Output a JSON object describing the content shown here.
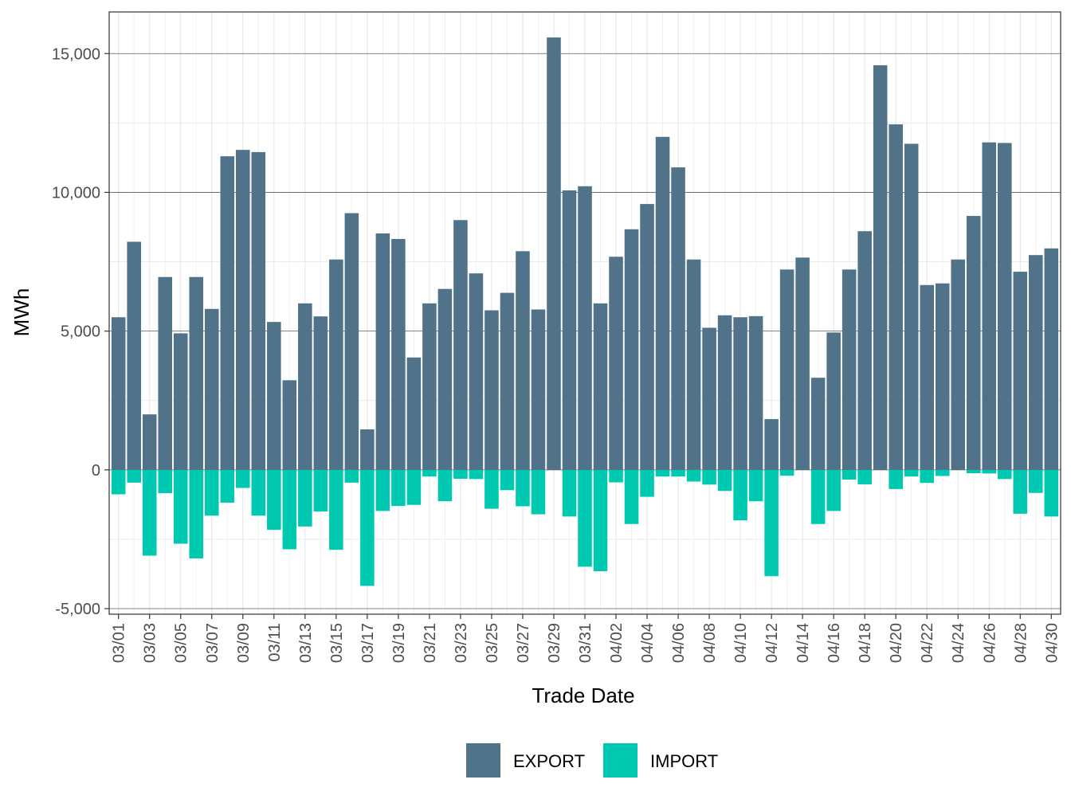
{
  "chart_data": {
    "type": "bar",
    "stacking": "diverging",
    "xlabel": "Trade Date",
    "ylabel": "MWh",
    "ylim": [
      -5200,
      16500
    ],
    "y_ticks": [
      -5000,
      0,
      5000,
      10000,
      15000
    ],
    "y_tick_labels": [
      "-5,000",
      "0",
      "5,000",
      "10,000",
      "15,000"
    ],
    "x_tick_labels": [
      "03/01",
      "03/03",
      "03/05",
      "03/07",
      "03/09",
      "03/11",
      "03/13",
      "03/15",
      "03/17",
      "03/19",
      "03/21",
      "03/23",
      "03/25",
      "03/27",
      "03/29",
      "03/31",
      "04/02",
      "04/04",
      "04/06",
      "04/08",
      "04/10",
      "04/12",
      "04/14",
      "04/16",
      "04/18",
      "04/20",
      "04/22",
      "04/24",
      "04/26",
      "04/28",
      "04/30"
    ],
    "grid": true,
    "legend_position": "bottom",
    "categories": [
      "03/01",
      "03/02",
      "03/03",
      "03/04",
      "03/05",
      "03/06",
      "03/07",
      "03/08",
      "03/09",
      "03/10",
      "03/11",
      "03/12",
      "03/13",
      "03/14",
      "03/15",
      "03/16",
      "03/17",
      "03/18",
      "03/19",
      "03/20",
      "03/21",
      "03/22",
      "03/23",
      "03/24",
      "03/25",
      "03/26",
      "03/27",
      "03/28",
      "03/29",
      "03/30",
      "03/31",
      "04/01",
      "04/02",
      "04/03",
      "04/04",
      "04/05",
      "04/06",
      "04/07",
      "04/08",
      "04/09",
      "04/10",
      "04/11",
      "04/12",
      "04/13",
      "04/14",
      "04/15",
      "04/16",
      "04/17",
      "04/18",
      "04/19",
      "04/20",
      "04/21",
      "04/22",
      "04/23",
      "04/24",
      "04/25",
      "04/26",
      "04/27",
      "04/28",
      "04/29",
      "04/30"
    ],
    "series": [
      {
        "name": "EXPORT",
        "color": "#50738a",
        "values": [
          5500,
          8220,
          2000,
          6950,
          4920,
          6950,
          5800,
          11300,
          11530,
          11450,
          5330,
          3230,
          6000,
          5530,
          7580,
          9250,
          1460,
          8520,
          8320,
          4050,
          6000,
          6520,
          9000,
          7080,
          5750,
          6380,
          7880,
          5780,
          15580,
          10070,
          10220,
          6000,
          7680,
          8670,
          9580,
          12000,
          10900,
          7580,
          5120,
          5570,
          5500,
          5540,
          1830,
          7220,
          7650,
          3320,
          4950,
          7220,
          8600,
          14580,
          12450,
          11750,
          6660,
          6720,
          7580,
          9150,
          11800,
          11780,
          7140,
          7740,
          7980
        ]
      },
      {
        "name": "IMPORT",
        "color": "#00c9b1",
        "values": [
          -880,
          -460,
          -3090,
          -840,
          -2660,
          -3190,
          -1650,
          -1180,
          -650,
          -1650,
          -2160,
          -2860,
          -2040,
          -1500,
          -2880,
          -460,
          -4180,
          -1480,
          -1300,
          -1260,
          -240,
          -1130,
          -320,
          -330,
          -1400,
          -730,
          -1310,
          -1600,
          0,
          -1680,
          -3490,
          -3650,
          -450,
          -1950,
          -970,
          -240,
          -240,
          -420,
          -530,
          -760,
          -1820,
          -1130,
          -3830,
          -210,
          0,
          -1950,
          -1480,
          -350,
          -520,
          0,
          -690,
          -240,
          -470,
          -220,
          0,
          -120,
          -130,
          -330,
          -1580,
          -830,
          -1680
        ]
      }
    ]
  }
}
